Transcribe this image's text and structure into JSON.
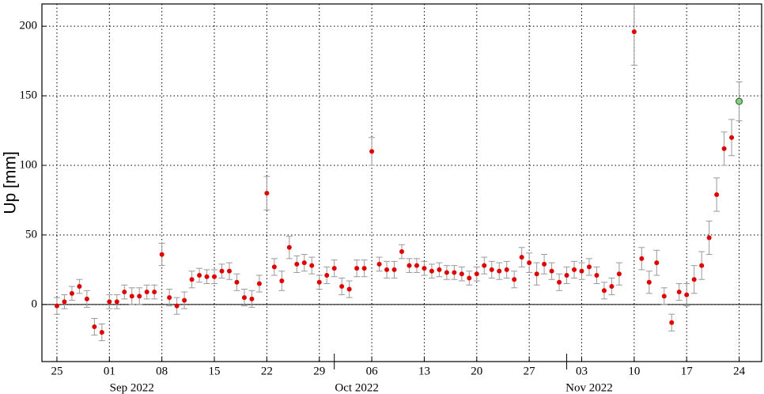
{
  "chart_data": {
    "type": "scatter",
    "y_label": "Up [mm]",
    "xlim": [
      "2022-08-23",
      "2022-11-27"
    ],
    "ylim": [
      -41,
      216
    ],
    "xticks": [
      {
        "value": "2022-08-25",
        "label": "25"
      },
      {
        "value": "2022-09-01",
        "label": "01"
      },
      {
        "value": "2022-09-08",
        "label": "08"
      },
      {
        "value": "2022-09-15",
        "label": "15"
      },
      {
        "value": "2022-09-22",
        "label": "22"
      },
      {
        "value": "2022-09-29",
        "label": "29"
      },
      {
        "value": "2022-10-06",
        "label": "06"
      },
      {
        "value": "2022-10-13",
        "label": "13"
      },
      {
        "value": "2022-10-20",
        "label": "20"
      },
      {
        "value": "2022-10-27",
        "label": "27"
      },
      {
        "value": "2022-11-03",
        "label": "03"
      },
      {
        "value": "2022-11-10",
        "label": "10"
      },
      {
        "value": "2022-11-17",
        "label": "17"
      },
      {
        "value": "2022-11-24",
        "label": "24"
      }
    ],
    "month_ticks": [
      {
        "value": "2022-09-01",
        "label": "Sep 2022"
      },
      {
        "value": "2022-10-01",
        "label": "Oct 2022"
      },
      {
        "value": "2022-11-01",
        "label": "Nov 2022"
      }
    ],
    "yticks": [
      0,
      50,
      100,
      150,
      200
    ],
    "grid": true,
    "series": [
      {
        "color": "#e00000",
        "x": [
          "2022-08-25",
          "2022-08-26",
          "2022-08-27",
          "2022-08-28",
          "2022-08-29",
          "2022-08-30",
          "2022-08-31",
          "2022-09-01",
          "2022-09-02",
          "2022-09-03",
          "2022-09-04",
          "2022-09-05",
          "2022-09-06",
          "2022-09-07",
          "2022-09-08",
          "2022-09-09",
          "2022-09-10",
          "2022-09-11",
          "2022-09-12",
          "2022-09-13",
          "2022-09-14",
          "2022-09-15",
          "2022-09-16",
          "2022-09-17",
          "2022-09-18",
          "2022-09-19",
          "2022-09-20",
          "2022-09-21",
          "2022-09-22",
          "2022-09-23",
          "2022-09-24",
          "2022-09-25",
          "2022-09-26",
          "2022-09-27",
          "2022-09-28",
          "2022-09-29",
          "2022-09-30",
          "2022-10-01",
          "2022-10-02",
          "2022-10-03",
          "2022-10-04",
          "2022-10-05",
          "2022-10-06",
          "2022-10-07",
          "2022-10-08",
          "2022-10-09",
          "2022-10-10",
          "2022-10-11",
          "2022-10-12",
          "2022-10-13",
          "2022-10-14",
          "2022-10-15",
          "2022-10-16",
          "2022-10-17",
          "2022-10-18",
          "2022-10-19",
          "2022-10-20",
          "2022-10-21",
          "2022-10-22",
          "2022-10-23",
          "2022-10-24",
          "2022-10-25",
          "2022-10-26",
          "2022-10-27",
          "2022-10-28",
          "2022-10-29",
          "2022-10-30",
          "2022-10-31",
          "2022-11-01",
          "2022-11-02",
          "2022-11-03",
          "2022-11-04",
          "2022-11-05",
          "2022-11-06",
          "2022-11-07",
          "2022-11-08",
          "2022-11-10",
          "2022-11-11",
          "2022-11-12",
          "2022-11-13",
          "2022-11-14",
          "2022-11-15",
          "2022-11-16",
          "2022-11-17",
          "2022-11-18",
          "2022-11-19",
          "2022-11-20",
          "2022-11-21",
          "2022-11-22",
          "2022-11-23"
        ],
        "values": [
          -1,
          2,
          8,
          13,
          4,
          -16,
          -20,
          2,
          2,
          9,
          6,
          6,
          9,
          9,
          36,
          5,
          -1,
          3,
          18,
          21,
          20,
          20,
          24,
          24,
          16,
          5,
          4,
          15,
          80,
          27,
          17,
          41,
          29,
          30,
          28,
          16,
          21,
          26,
          13,
          11,
          26,
          26,
          110,
          29,
          25,
          25,
          38,
          28,
          28,
          26,
          24,
          25,
          23,
          23,
          22,
          19,
          22,
          28,
          25,
          24,
          25,
          18,
          34,
          30,
          22,
          29,
          24,
          16,
          21,
          25,
          24,
          27,
          21,
          10,
          13,
          22,
          196,
          33,
          16,
          30,
          6,
          -13,
          9,
          7,
          18,
          28,
          48,
          79,
          112,
          120
        ],
        "errors": [
          6,
          5,
          5,
          5,
          6,
          6,
          6,
          5,
          5,
          5,
          6,
          6,
          5,
          5,
          8,
          6,
          6,
          6,
          6,
          5,
          5,
          5,
          5,
          6,
          6,
          6,
          6,
          6,
          12,
          6,
          7,
          8,
          6,
          6,
          6,
          5,
          6,
          6,
          6,
          6,
          6,
          6,
          10,
          5,
          6,
          6,
          5,
          5,
          5,
          5,
          5,
          5,
          5,
          5,
          5,
          5,
          5,
          6,
          6,
          6,
          6,
          6,
          7,
          7,
          8,
          7,
          6,
          6,
          6,
          6,
          6,
          6,
          6,
          6,
          6,
          8,
          24,
          8,
          8,
          9,
          6,
          6,
          6,
          8,
          10,
          10,
          12,
          12,
          12,
          13
        ]
      },
      {
        "color": "#7fd07f",
        "x": [
          "2022-11-24"
        ],
        "values": [
          146
        ],
        "errors": [
          14
        ]
      }
    ]
  }
}
